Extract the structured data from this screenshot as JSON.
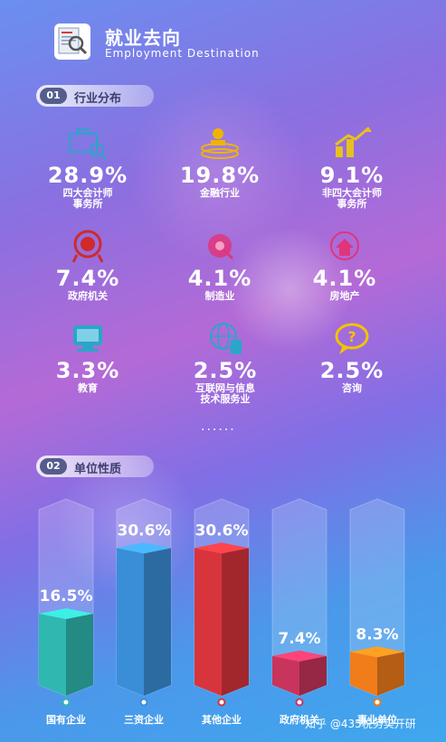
{
  "header": {
    "title": "就业去向",
    "subtitle": "Employment Destination"
  },
  "section1": {
    "num": "01",
    "label": "行业分布"
  },
  "section2": {
    "num": "02",
    "label": "单位性质"
  },
  "stats": [
    {
      "value": "28.9%",
      "label1": "四大会计师",
      "label2": "事务所",
      "icon": "briefcase-search-icon",
      "color": "#2aa6c8"
    },
    {
      "value": "19.8%",
      "label1": "金融行业",
      "label2": "",
      "icon": "money-stack-icon",
      "color": "#f0b400"
    },
    {
      "value": "9.1%",
      "label1": "非四大会计师",
      "label2": "事务所",
      "icon": "growth-chart-icon",
      "color": "#e8c020"
    },
    {
      "value": "7.4%",
      "label1": "政府机关",
      "label2": "",
      "icon": "government-emblem-icon",
      "color": "#d02a2a"
    },
    {
      "value": "4.1%",
      "label1": "制造业",
      "label2": "",
      "icon": "manufacturing-icon",
      "color": "#e0357a"
    },
    {
      "value": "4.1%",
      "label1": "房地产",
      "label2": "",
      "icon": "real-estate-icon",
      "color": "#e0357a"
    },
    {
      "value": "3.3%",
      "label1": "教育",
      "label2": "",
      "icon": "education-computer-icon",
      "color": "#2aa6c8"
    },
    {
      "value": "2.5%",
      "label1": "互联网与信息",
      "label2": "技术服务业",
      "icon": "globe-network-icon",
      "color": "#2aa6c8"
    },
    {
      "value": "2.5%",
      "label1": "咨询",
      "label2": "",
      "icon": "consulting-speech-icon",
      "color": "#f0c400"
    }
  ],
  "dots": "......",
  "chart_data": {
    "type": "bar",
    "categories": [
      "国有企业",
      "三资企业",
      "其他企业",
      "政府机关",
      "事业单位"
    ],
    "values": [
      16.5,
      30.6,
      30.6,
      7.4,
      8.3
    ],
    "value_labels": [
      "16.5%",
      "30.6%",
      "30.6%",
      "7.4%",
      "8.3%"
    ],
    "ylim": [
      0,
      40
    ],
    "colors": [
      "#2fb8b0",
      "#3a8ed8",
      "#d8343c",
      "#c8345c",
      "#f07c1a"
    ],
    "grid": false
  },
  "footer": {
    "watermark": "知乎 @435税务实开研"
  }
}
